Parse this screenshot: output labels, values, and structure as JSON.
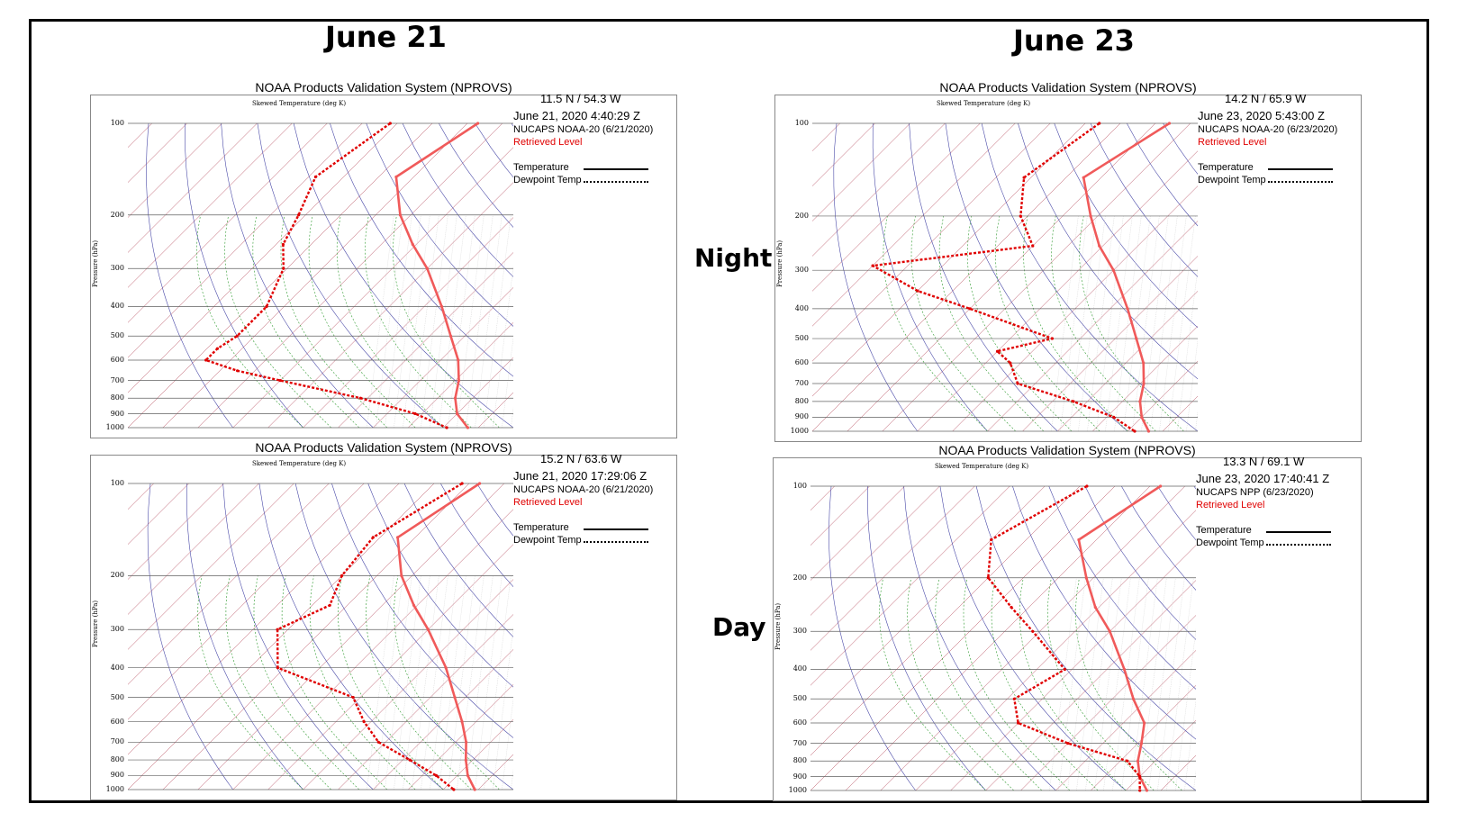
{
  "headers": {
    "june21": "June 21",
    "june23": "June 23",
    "night": "Night",
    "day": "Day"
  },
  "colors": {
    "temperature": "#f05a5a",
    "dewpoint": "#e00000",
    "isotherm": "#b5485a",
    "dry_adiabat": "#4a4aa8",
    "moist_adiabat": "#2e9a2e",
    "isobar": "#606060"
  },
  "chart_data": [
    {
      "type": "line",
      "title": "NOAA Products Validation System (NPROVS)",
      "subtitle": "Skewed Temperature (deg K)",
      "ylabel": "Pressure (hPa)",
      "location": "11.5 N  / 54.3 W",
      "datetime": "June 21, 2020  4:40:29 Z",
      "product": "NUCAPS NOAA-20  (6/21/2020)",
      "retrieved": "Retrieved Level",
      "legend": {
        "temperature": "Temperature",
        "dewpoint": "Dewpoint Temp"
      },
      "pressure_ticks": [
        100,
        200,
        300,
        400,
        500,
        600,
        700,
        800,
        900,
        1000
      ],
      "series": [
        {
          "name": "Temperature",
          "pressure": [
            100,
            150,
            200,
            250,
            300,
            400,
            500,
            600,
            700,
            800,
            900,
            1000
          ],
          "value": [
            213,
            205,
            217,
            229,
            240,
            255,
            266,
            275,
            281,
            285,
            290,
            297
          ]
        },
        {
          "name": "Dewpoint Temp",
          "pressure": [
            100,
            150,
            200,
            250,
            300,
            400,
            500,
            550,
            600,
            650,
            700,
            800,
            900,
            1000
          ],
          "value": [
            188,
            182,
            188,
            192,
            199,
            205,
            205,
            203,
            203,
            215,
            230,
            258,
            278,
            291
          ]
        }
      ]
    },
    {
      "type": "line",
      "title": "NOAA Products Validation System (NPROVS)",
      "subtitle": "Skewed Temperature (deg K)",
      "ylabel": "Pressure (hPa)",
      "location": "14.2 N  / 65.9 W",
      "datetime": "June 23, 2020  5:43:00 Z",
      "product": "NUCAPS NOAA-20  (6/23/2020)",
      "retrieved": "Retrieved Level",
      "legend": {
        "temperature": "Temperature",
        "dewpoint": "Dewpoint Temp"
      },
      "pressure_ticks": [
        100,
        200,
        300,
        400,
        500,
        600,
        700,
        800,
        900,
        1000
      ],
      "series": [
        {
          "name": "Temperature",
          "pressure": [
            100,
            150,
            200,
            250,
            300,
            400,
            500,
            600,
            700,
            800,
            900,
            1000
          ],
          "value": [
            214,
            205,
            218,
            229,
            240,
            255,
            266,
            275,
            281,
            285,
            290,
            296
          ]
        },
        {
          "name": "Dewpoint Temp",
          "pressure": [
            100,
            150,
            200,
            250,
            290,
            350,
            400,
            500,
            550,
            600,
            700,
            800,
            900,
            1000
          ],
          "value": [
            194,
            188,
            198,
            210,
            170,
            190,
            210,
            242,
            230,
            237,
            245,
            266,
            282,
            292
          ]
        }
      ]
    },
    {
      "type": "line",
      "title": "NOAA Products Validation System (NPROVS)",
      "subtitle": "Skewed Temperature (deg K)",
      "ylabel": "Pressure (hPa)",
      "location": "15.2 N  / 63.6 W",
      "datetime": "June 21, 2020  17:29:06 Z",
      "product": "NUCAPS NOAA-20  (6/21/2020)",
      "retrieved": "Retrieved Level",
      "legend": {
        "temperature": "Temperature",
        "dewpoint": "Dewpoint Temp"
      },
      "pressure_ticks": [
        100,
        200,
        300,
        400,
        500,
        600,
        700,
        800,
        900,
        1000
      ],
      "series": [
        {
          "name": "Temperature",
          "pressure": [
            100,
            150,
            200,
            250,
            300,
            400,
            500,
            600,
            700,
            800,
            900,
            1000
          ],
          "value": [
            213,
            205,
            217,
            229,
            240,
            256,
            267,
            276,
            283,
            288,
            293,
            299
          ]
        },
        {
          "name": "Dewpoint Temp",
          "pressure": [
            100,
            150,
            200,
            250,
            300,
            400,
            500,
            600,
            700,
            800,
            900,
            1000
          ],
          "value": [
            208,
            198,
            200,
            205,
            197,
            208,
            238,
            248,
            258,
            272,
            284,
            293
          ]
        }
      ]
    },
    {
      "type": "line",
      "title": "NOAA Products Validation System (NPROVS)",
      "subtitle": "Skewed Temperature (deg K)",
      "ylabel": "Pressure (hPa)",
      "location": "13.3 N  / 69.1 W",
      "datetime": "June 23, 2020  17:40:41 Z",
      "product": "NUCAPS NPP  (6/23/2020)",
      "retrieved": "Retrieved Level",
      "legend": {
        "temperature": "Temperature",
        "dewpoint": "Dewpoint Temp"
      },
      "pressure_ticks": [
        100,
        200,
        300,
        400,
        500,
        600,
        700,
        800,
        900,
        1000
      ],
      "series": [
        {
          "name": "Temperature",
          "pressure": [
            100,
            150,
            200,
            250,
            300,
            400,
            500,
            600,
            700,
            800,
            900,
            1000
          ],
          "value": [
            213,
            205,
            218,
            229,
            240,
            255,
            266,
            276,
            281,
            285,
            290,
            296
          ]
        },
        {
          "name": "Dewpoint Temp",
          "pressure": [
            100,
            150,
            200,
            250,
            300,
            400,
            500,
            600,
            700,
            800,
            900,
            1000
          ],
          "value": [
            192,
            180,
            190,
            205,
            218,
            238,
            232,
            240,
            260,
            282,
            290,
            294
          ]
        }
      ]
    }
  ]
}
